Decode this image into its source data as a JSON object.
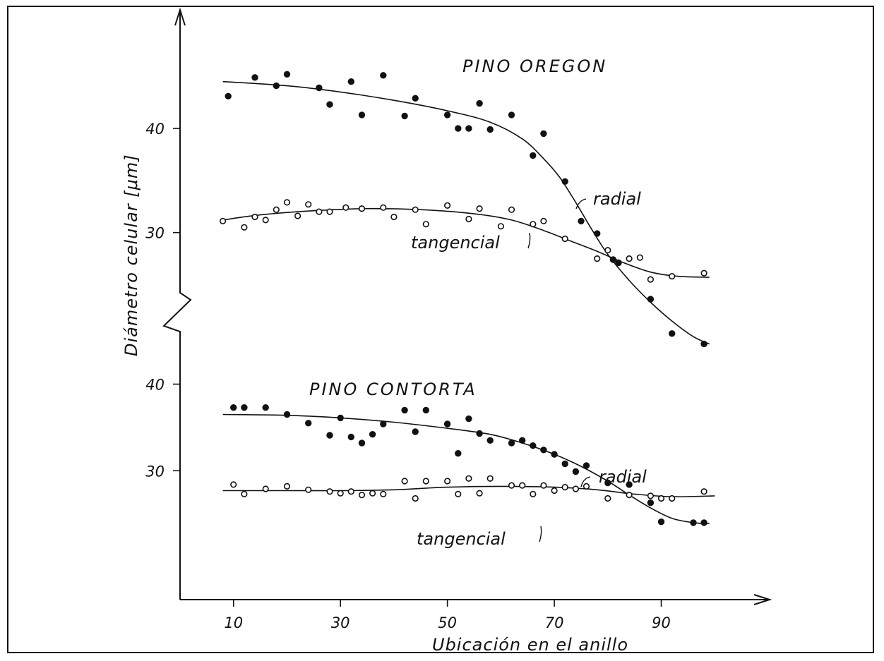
{
  "chart_data": {
    "type": "scatter",
    "title": "",
    "xlabel": "Ubicación en el anillo",
    "ylabel": "Diámetro celular [μm]",
    "xlim": [
      0,
      110
    ],
    "x_ticks": [
      10,
      30,
      50,
      70,
      90
    ],
    "legend": "none",
    "grid": false,
    "panels": [
      {
        "title": "PINO OREGON",
        "y_ticks": [
          30,
          40
        ],
        "ylim": [
          19,
          48
        ],
        "series": [
          {
            "name": "radial",
            "marker": "filled-circle",
            "points": [
              [
                9,
                43.1
              ],
              [
                14,
                44.9
              ],
              [
                18,
                44.1
              ],
              [
                20,
                45.2
              ],
              [
                26,
                43.9
              ],
              [
                28,
                42.3
              ],
              [
                32,
                44.5
              ],
              [
                34,
                41.3
              ],
              [
                38,
                45.1
              ],
              [
                42,
                41.2
              ],
              [
                44,
                42.9
              ],
              [
                50,
                41.3
              ],
              [
                52,
                40
              ],
              [
                54,
                40
              ],
              [
                56,
                42.4
              ],
              [
                58,
                39.9
              ],
              [
                62,
                41.3
              ],
              [
                66,
                37.4
              ],
              [
                68,
                39.5
              ],
              [
                72,
                34.9
              ],
              [
                75,
                31.1
              ],
              [
                78,
                29.9
              ],
              [
                81,
                27.4
              ],
              [
                82,
                27.1
              ],
              [
                88,
                23.6
              ],
              [
                92,
                20.3
              ],
              [
                98,
                19.3
              ]
            ],
            "fit": [
              [
                8,
                44.5
              ],
              [
                20,
                44.1
              ],
              [
                30,
                43.5
              ],
              [
                40,
                42.7
              ],
              [
                50,
                41.7
              ],
              [
                58,
                40.6
              ],
              [
                64,
                39
              ],
              [
                68,
                37.1
              ],
              [
                71,
                35.3
              ],
              [
                74,
                32.9
              ],
              [
                77,
                30.3
              ],
              [
                80,
                27.9
              ],
              [
                84,
                25.4
              ],
              [
                88,
                23.3
              ],
              [
                92,
                21.5
              ],
              [
                96,
                20
              ],
              [
                99,
                19.3
              ]
            ]
          },
          {
            "name": "tangencial",
            "marker": "open-circle",
            "points": [
              [
                8,
                31.1
              ],
              [
                12,
                30.5
              ],
              [
                14,
                31.5
              ],
              [
                16,
                31.2
              ],
              [
                18,
                32.2
              ],
              [
                20,
                32.9
              ],
              [
                22,
                31.6
              ],
              [
                24,
                32.7
              ],
              [
                26,
                32
              ],
              [
                28,
                32
              ],
              [
                31,
                32.4
              ],
              [
                34,
                32.3
              ],
              [
                38,
                32.4
              ],
              [
                40,
                31.5
              ],
              [
                44,
                32.2
              ],
              [
                46,
                30.8
              ],
              [
                50,
                32.6
              ],
              [
                54,
                31.3
              ],
              [
                56,
                32.3
              ],
              [
                60,
                30.6
              ],
              [
                62,
                32.2
              ],
              [
                66,
                30.8
              ],
              [
                68,
                31.1
              ],
              [
                72,
                29.4
              ],
              [
                78,
                27.5
              ],
              [
                80,
                28.3
              ],
              [
                84,
                27.5
              ],
              [
                86,
                27.6
              ],
              [
                88,
                25.5
              ],
              [
                92,
                25.8
              ],
              [
                98,
                26.1
              ]
            ],
            "fit": [
              [
                8,
                31.2
              ],
              [
                15,
                31.7
              ],
              [
                25,
                32.1
              ],
              [
                35,
                32.3
              ],
              [
                45,
                32.2
              ],
              [
                55,
                31.8
              ],
              [
                62,
                31.2
              ],
              [
                68,
                30.2
              ],
              [
                73,
                29.2
              ],
              [
                78,
                28.2
              ],
              [
                83,
                27.1
              ],
              [
                88,
                26.2
              ],
              [
                93,
                25.8
              ],
              [
                99,
                25.7
              ]
            ]
          }
        ]
      },
      {
        "title": "PINO CONTORTA",
        "y_ticks": [
          30,
          40
        ],
        "ylim": [
          20,
          42
        ],
        "series": [
          {
            "name": "radial",
            "marker": "filled-circle",
            "points": [
              [
                10,
                37.3
              ],
              [
                12,
                37.3
              ],
              [
                16,
                37.3
              ],
              [
                20,
                36.5
              ],
              [
                24,
                35.5
              ],
              [
                28,
                34.1
              ],
              [
                30,
                36.1
              ],
              [
                32,
                33.9
              ],
              [
                34,
                33.2
              ],
              [
                36,
                34.2
              ],
              [
                38,
                35.4
              ],
              [
                42,
                37
              ],
              [
                44,
                34.5
              ],
              [
                46,
                37
              ],
              [
                50,
                35.4
              ],
              [
                52,
                32
              ],
              [
                54,
                36
              ],
              [
                56,
                34.3
              ],
              [
                58,
                33.5
              ],
              [
                62,
                33.2
              ],
              [
                64,
                33.5
              ],
              [
                66,
                32.9
              ],
              [
                68,
                32.4
              ],
              [
                70,
                31.9
              ],
              [
                72,
                30.8
              ],
              [
                74,
                29.9
              ],
              [
                76,
                30.6
              ],
              [
                80,
                28.6
              ],
              [
                84,
                28.4
              ],
              [
                88,
                26.3
              ],
              [
                90,
                24.1
              ],
              [
                96,
                24
              ],
              [
                98,
                24
              ]
            ],
            "fit": [
              [
                8,
                36.5
              ],
              [
                20,
                36.4
              ],
              [
                30,
                36.1
              ],
              [
                40,
                35.6
              ],
              [
                50,
                34.9
              ],
              [
                58,
                34.2
              ],
              [
                64,
                33.2
              ],
              [
                70,
                31.9
              ],
              [
                75,
                30.5
              ],
              [
                80,
                28.8
              ],
              [
                84,
                27.2
              ],
              [
                88,
                25.7
              ],
              [
                92,
                24.5
              ],
              [
                96,
                24
              ],
              [
                99,
                23.9
              ]
            ]
          },
          {
            "name": "tangencial",
            "marker": "open-circle",
            "points": [
              [
                10,
                28.4
              ],
              [
                12,
                27.3
              ],
              [
                16,
                27.9
              ],
              [
                20,
                28.2
              ],
              [
                24,
                27.8
              ],
              [
                28,
                27.6
              ],
              [
                30,
                27.4
              ],
              [
                32,
                27.6
              ],
              [
                34,
                27.2
              ],
              [
                36,
                27.4
              ],
              [
                38,
                27.3
              ],
              [
                42,
                28.8
              ],
              [
                44,
                26.8
              ],
              [
                46,
                28.8
              ],
              [
                50,
                28.8
              ],
              [
                52,
                27.3
              ],
              [
                54,
                29.1
              ],
              [
                56,
                27.4
              ],
              [
                58,
                29.1
              ],
              [
                62,
                28.3
              ],
              [
                64,
                28.3
              ],
              [
                66,
                27.3
              ],
              [
                68,
                28.3
              ],
              [
                70,
                27.7
              ],
              [
                72,
                28.1
              ],
              [
                74,
                27.9
              ],
              [
                76,
                28.2
              ],
              [
                80,
                26.8
              ],
              [
                84,
                27.2
              ],
              [
                88,
                27.1
              ],
              [
                90,
                26.8
              ],
              [
                92,
                26.8
              ],
              [
                98,
                27.6
              ]
            ],
            "fit": [
              [
                8,
                27.7
              ],
              [
                20,
                27.7
              ],
              [
                30,
                27.7
              ],
              [
                40,
                27.8
              ],
              [
                50,
                28.1
              ],
              [
                60,
                28.2
              ],
              [
                70,
                28.1
              ],
              [
                78,
                27.8
              ],
              [
                85,
                27.3
              ],
              [
                92,
                27
              ],
              [
                100,
                27.1
              ]
            ]
          }
        ]
      }
    ]
  }
}
